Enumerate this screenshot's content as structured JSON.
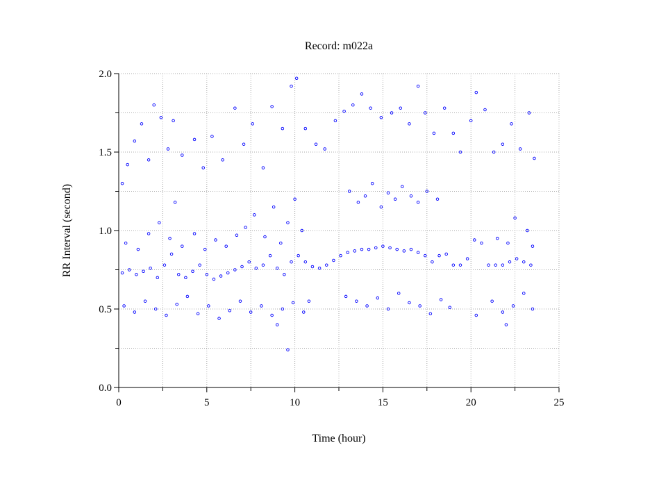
{
  "chart_data": {
    "type": "scatter",
    "title": "Record:  m022a",
    "xlabel": "Time (hour)",
    "ylabel": "RR Interval (second)",
    "color": "#0000ff",
    "grid": true,
    "xlim": [
      0,
      25
    ],
    "xticks": [
      0,
      5,
      10,
      15,
      20,
      25
    ],
    "xminorticks": [
      2.5,
      7.5,
      12.5,
      17.5,
      22.5
    ],
    "ylim": [
      0,
      2
    ],
    "yticks": [
      {
        "value": 0,
        "label": "0.0"
      },
      0.5,
      {
        "value": 1,
        "label": "1.0"
      },
      1.5,
      {
        "value": 2,
        "label": "2.0"
      }
    ],
    "yminorticks": [
      0.25,
      0.75,
      1.25,
      1.75
    ],
    "series": [
      {
        "name": "RR",
        "color": "#0000ff",
        "x": [
          0.2,
          0.6,
          1.0,
          1.4,
          1.8,
          2.2,
          2.6,
          3.0,
          3.4,
          3.8,
          4.2,
          4.6,
          5.0,
          5.4,
          5.8,
          6.2,
          6.6,
          7.0,
          7.4,
          7.8,
          8.2,
          8.6,
          9.0,
          9.4,
          9.8,
          10.2,
          10.6,
          11.0,
          11.4,
          11.8,
          12.2,
          12.6,
          13.0,
          13.4,
          13.8,
          14.2,
          14.6,
          15.0,
          15.4,
          15.8,
          16.2,
          16.6,
          17.0,
          17.4,
          17.8,
          18.2,
          18.6,
          19.0,
          19.4,
          19.8,
          20.2,
          20.6,
          21.0,
          21.4,
          21.8,
          22.2,
          22.6,
          23.0,
          23.4,
          0.3,
          0.9,
          1.5,
          2.1,
          2.7,
          3.3,
          3.9,
          4.5,
          5.1,
          5.7,
          6.3,
          6.9,
          7.5,
          8.1,
          8.7,
          9.3,
          9.9,
          10.5,
          12.9,
          13.5,
          14.1,
          14.7,
          15.3,
          15.9,
          16.5,
          17.1,
          17.7,
          18.3,
          18.8,
          21.2,
          21.8,
          22.4,
          23.0,
          23.5,
          0.4,
          1.1,
          1.7,
          2.3,
          2.9,
          3.2,
          3.6,
          4.3,
          4.9,
          5.5,
          6.1,
          6.7,
          7.2,
          7.7,
          8.3,
          8.8,
          9.2,
          9.6,
          10.0,
          10.4,
          21.5,
          22.1,
          22.5,
          23.2,
          23.5,
          13.1,
          13.6,
          14.0,
          14.4,
          14.9,
          15.3,
          15.7,
          16.1,
          16.6,
          17.0,
          17.5,
          18.1,
          0.2,
          0.5,
          0.9,
          1.3,
          1.7,
          2.0,
          2.4,
          2.8,
          3.1,
          3.6,
          4.3,
          4.8,
          5.3,
          5.9,
          6.6,
          7.1,
          7.6,
          8.2,
          8.7,
          9.3,
          9.8,
          10.1,
          10.6,
          11.2,
          11.7,
          12.3,
          12.8,
          13.3,
          13.8,
          14.3,
          14.9,
          15.5,
          16.0,
          16.5,
          17.0,
          17.4,
          17.9,
          18.5,
          19.0,
          19.4,
          20.0,
          20.3,
          20.8,
          21.3,
          21.8,
          22.3,
          22.8,
          23.3,
          23.6,
          9.6,
          10.8,
          9.0,
          20.3,
          22.0
        ],
        "values": [
          0.73,
          0.75,
          0.72,
          0.74,
          0.76,
          0.7,
          0.78,
          0.85,
          0.72,
          0.7,
          0.74,
          0.78,
          0.72,
          0.69,
          0.71,
          0.73,
          0.75,
          0.77,
          0.8,
          0.76,
          0.78,
          0.84,
          0.76,
          0.72,
          0.8,
          0.84,
          0.8,
          0.77,
          0.76,
          0.78,
          0.81,
          0.84,
          0.86,
          0.87,
          0.88,
          0.88,
          0.89,
          0.9,
          0.89,
          0.88,
          0.87,
          0.88,
          0.86,
          0.84,
          0.8,
          0.84,
          0.85,
          0.78,
          0.78,
          0.82,
          0.94,
          0.92,
          0.78,
          0.78,
          0.78,
          0.8,
          0.82,
          0.8,
          0.78,
          0.52,
          0.48,
          0.55,
          0.5,
          0.46,
          0.53,
          0.58,
          0.47,
          0.52,
          0.44,
          0.49,
          0.55,
          0.48,
          0.52,
          0.46,
          0.5,
          0.54,
          0.48,
          0.58,
          0.55,
          0.52,
          0.57,
          0.5,
          0.6,
          0.54,
          0.52,
          0.47,
          0.56,
          0.51,
          0.55,
          0.48,
          0.52,
          0.6,
          0.5,
          0.92,
          0.88,
          0.98,
          1.05,
          0.95,
          1.18,
          0.9,
          0.98,
          0.88,
          0.94,
          0.9,
          0.97,
          1.02,
          1.1,
          0.96,
          1.15,
          0.92,
          1.05,
          1.2,
          1.0,
          0.95,
          0.92,
          1.08,
          1.0,
          0.9,
          1.25,
          1.18,
          1.22,
          1.3,
          1.15,
          1.24,
          1.2,
          1.28,
          1.22,
          1.18,
          1.25,
          1.2,
          1.3,
          1.42,
          1.57,
          1.68,
          1.45,
          1.8,
          1.72,
          1.52,
          1.7,
          1.48,
          1.58,
          1.4,
          1.6,
          1.45,
          1.78,
          1.55,
          1.68,
          1.4,
          1.79,
          1.65,
          1.92,
          1.97,
          1.65,
          1.55,
          1.52,
          1.7,
          1.76,
          1.8,
          1.87,
          1.78,
          1.72,
          1.75,
          1.78,
          1.68,
          1.92,
          1.75,
          1.62,
          1.78,
          1.62,
          1.5,
          1.7,
          1.88,
          1.77,
          1.5,
          1.55,
          1.68,
          1.52,
          1.75,
          1.46,
          0.24,
          0.55,
          0.4,
          0.46,
          0.4
        ]
      }
    ]
  }
}
